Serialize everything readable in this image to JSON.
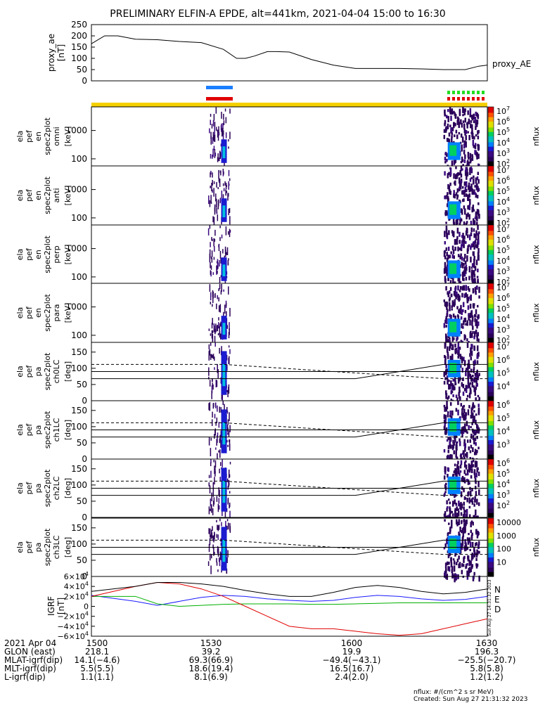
{
  "title": "PRELIMINARY ELFIN-A EPDE, alt=441km, 2021-04-04 15:00 to 16:30",
  "colors": {
    "fgm_N": "#1a1aff",
    "fgm_E": "#00b000",
    "fgm_D": "#e00000",
    "sci_zone_bar": "#f5d000",
    "bar_blue": "#1a7fff",
    "bar_red": "#e00000",
    "bar_green": "#22dd22"
  },
  "chart_data": [
    {
      "id": "proxy_ae",
      "type": "line",
      "ylabel": "proxy_ae",
      "yunit": "[nT]",
      "series_label": "proxy_AE",
      "ylim": [
        0,
        250
      ],
      "yticks": [
        "250",
        "200",
        "150",
        "100",
        "50",
        "0"
      ],
      "ytick_values": [
        250,
        200,
        150,
        100,
        50,
        0
      ],
      "x": [
        0,
        3,
        6,
        10,
        15,
        20,
        25,
        30,
        33,
        35,
        37,
        40,
        42,
        45,
        50,
        55,
        60,
        65,
        70,
        75,
        80,
        85,
        88,
        90
      ],
      "values": [
        165,
        200,
        200,
        185,
        183,
        175,
        170,
        140,
        100,
        100,
        110,
        130,
        130,
        128,
        95,
        70,
        55,
        55,
        55,
        53,
        50,
        50,
        65,
        70
      ]
    },
    {
      "id": "energy_spectra",
      "type": "heatmap",
      "panels": [
        {
          "ylabel_lines": [
            "ela",
            "pef",
            "en",
            "spec2plot",
            "omni"
          ],
          "yunit": "[keV]",
          "yticks": [
            "1000",
            "100"
          ]
        },
        {
          "ylabel_lines": [
            "ela",
            "pef",
            "en",
            "spec2plot",
            "anti"
          ],
          "yunit": "[keV]",
          "yticks": [
            "1000",
            "100"
          ]
        },
        {
          "ylabel_lines": [
            "ela",
            "pef",
            "en",
            "spec2plot",
            "perp"
          ],
          "yunit": "[keV]",
          "yticks": [
            "1000",
            "100"
          ]
        },
        {
          "ylabel_lines": [
            "ela",
            "pef",
            "en",
            "spec2plot",
            "para"
          ],
          "yunit": "[keV]",
          "yticks": [
            "1000",
            "100"
          ]
        }
      ],
      "colorbar_label": "nflux",
      "colorbar_ticks": [
        "10^7",
        "10^6",
        "10^5",
        "10^4",
        "10^3",
        "10^2"
      ]
    },
    {
      "id": "pitch_angle_spectra",
      "type": "heatmap",
      "panels": [
        {
          "ylabel_lines": [
            "ela",
            "pef",
            "pa",
            "spec2plot",
            "ch0LC"
          ],
          "yunit": "[deg]",
          "yticks": [
            "150",
            "100",
            "50",
            "0"
          ],
          "colorbar_ticks": [
            "10^7",
            "10^6",
            "10^5",
            "10^4"
          ]
        },
        {
          "ylabel_lines": [
            "ela",
            "pef",
            "pa",
            "spec2plot",
            "ch1LC"
          ],
          "yunit": "[deg]",
          "yticks": [
            "150",
            "100",
            "50",
            "0"
          ],
          "colorbar_ticks": [
            "10^6",
            "10^5",
            "10^4",
            "10^3"
          ]
        },
        {
          "ylabel_lines": [
            "ela",
            "pef",
            "pa",
            "spec2plot",
            "ch2LC"
          ],
          "yunit": "[deg]",
          "yticks": [
            "150",
            "100",
            "50",
            "0"
          ],
          "colorbar_ticks": [
            "10^6",
            "10^5",
            "10^4",
            "10^3",
            "10^2"
          ]
        },
        {
          "ylabel_lines": [
            "ela",
            "pef",
            "pa",
            "spec2plot",
            "ch3LC"
          ],
          "yunit": "[deg]",
          "yticks": [
            "150",
            "100",
            "50",
            "0"
          ],
          "colorbar_ticks": [
            "10000",
            "1000",
            "100",
            "10"
          ]
        }
      ],
      "colorbar_label": "nflux"
    },
    {
      "id": "igrf_residual",
      "type": "line",
      "ylabel": "IGRF",
      "yunit": "[nT]",
      "ylim": [
        -60000,
        60000
      ],
      "yticks": [
        "6×10^4",
        "4×10^4",
        "2×10^4",
        "0",
        "−2×10^4",
        "−4×10^4",
        "−6×10^4"
      ],
      "ytick_values": [
        60000,
        40000,
        20000,
        0,
        -20000,
        -40000,
        -60000
      ],
      "legend": [
        "N",
        "E",
        "D"
      ],
      "x": [
        0,
        10,
        15,
        20,
        25,
        30,
        35,
        40,
        45,
        50,
        55,
        60,
        65,
        70,
        75,
        80,
        85,
        90
      ],
      "series": [
        {
          "name": "N",
          "values": [
            22000,
            10000,
            2000,
            10000,
            18000,
            22000,
            20000,
            15000,
            12000,
            10000,
            12000,
            18000,
            22000,
            20000,
            15000,
            12000,
            14000,
            20000
          ]
        },
        {
          "name": "E",
          "values": [
            20000,
            20000,
            5000,
            0,
            2000,
            4000,
            5000,
            5000,
            5000,
            4000,
            4000,
            5000,
            6000,
            7000,
            7000,
            7000,
            7000,
            7000
          ]
        },
        {
          "name": "D",
          "values": [
            20000,
            40000,
            48000,
            45000,
            35000,
            20000,
            0,
            -20000,
            -40000,
            -45000,
            -45000,
            -50000,
            -55000,
            -58000,
            -55000,
            -45000,
            -35000,
            -25000
          ]
        },
        {
          "name": "",
          "values": [
            30000,
            40000,
            48000,
            48000,
            45000,
            40000,
            32000,
            25000,
            20000,
            20000,
            28000,
            38000,
            42000,
            38000,
            30000,
            25000,
            28000,
            35000
          ]
        }
      ]
    }
  ],
  "orbit_table": {
    "rows": [
      {
        "label": "2021 Apr 04",
        "values": [
          "1500",
          "1530",
          "1600",
          "1630"
        ]
      },
      {
        "label": "GLON (east)",
        "values": [
          "218.1",
          "39.2",
          "19.9",
          "196.3"
        ]
      },
      {
        "label": "MLAT-igrf(dip)",
        "values": [
          "14.1(−4.6)",
          "69.3(66.9)",
          "−49.4(−43.1)",
          "−25.5(−20.7)"
        ]
      },
      {
        "label": "MLT-igrf(dip)",
        "values": [
          "5.5(5.5)",
          "18.6(19.4)",
          "16.5(16.7)",
          "5.8(5.8)"
        ]
      },
      {
        "label": "L-igrf(dip)",
        "values": [
          "1.1(1.1)",
          "8.1(6.9)",
          "2.4(2.0)",
          "1.2(1.2)"
        ]
      }
    ]
  },
  "footer": {
    "units": "nflux: #/(cm^2 s sr MeV)",
    "created": "Created: Sun Aug 27 21:31:32 2023",
    "side_stamp": "Sun Aug 27 14:31:32 2023"
  }
}
